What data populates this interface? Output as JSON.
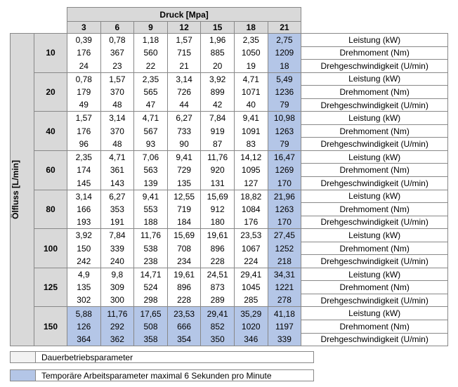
{
  "header": {
    "pressure_label": "Druck [Mpa]",
    "pressures": [
      "3",
      "6",
      "9",
      "12",
      "15",
      "18",
      "21"
    ]
  },
  "flow_label": "Ölfluss [L/min]",
  "metrics": [
    "Leistung (kW)",
    "Drehmoment (Nm)",
    "Drehgeschwindigkeit (U/min)"
  ],
  "groups": [
    {
      "flow": "10",
      "rows": [
        [
          "0,39",
          "0,78",
          "1,18",
          "1,57",
          "1,96",
          "2,35",
          "2,75"
        ],
        [
          "176",
          "367",
          "560",
          "715",
          "885",
          "1050",
          "1209"
        ],
        [
          "24",
          "23",
          "22",
          "21",
          "20",
          "19",
          "18"
        ]
      ]
    },
    {
      "flow": "20",
      "rows": [
        [
          "0,78",
          "1,57",
          "2,35",
          "3,14",
          "3,92",
          "4,71",
          "5,49"
        ],
        [
          "179",
          "370",
          "565",
          "726",
          "899",
          "1071",
          "1236"
        ],
        [
          "49",
          "48",
          "47",
          "44",
          "42",
          "40",
          "79"
        ]
      ]
    },
    {
      "flow": "40",
      "rows": [
        [
          "1,57",
          "3,14",
          "4,71",
          "6,27",
          "7,84",
          "9,41",
          "10,98"
        ],
        [
          "176",
          "370",
          "567",
          "733",
          "919",
          "1091",
          "1263"
        ],
        [
          "96",
          "48",
          "93",
          "90",
          "87",
          "83",
          "79"
        ]
      ]
    },
    {
      "flow": "60",
      "rows": [
        [
          "2,35",
          "4,71",
          "7,06",
          "9,41",
          "11,76",
          "14,12",
          "16,47"
        ],
        [
          "174",
          "361",
          "563",
          "729",
          "920",
          "1095",
          "1269"
        ],
        [
          "145",
          "143",
          "139",
          "135",
          "131",
          "127",
          "170"
        ]
      ]
    },
    {
      "flow": "80",
      "rows": [
        [
          "3,14",
          "6,27",
          "9,41",
          "12,55",
          "15,69",
          "18,82",
          "21,96"
        ],
        [
          "166",
          "353",
          "553",
          "719",
          "912",
          "1084",
          "1263"
        ],
        [
          "193",
          "191",
          "188",
          "184",
          "180",
          "176",
          "170"
        ]
      ]
    },
    {
      "flow": "100",
      "rows": [
        [
          "3,92",
          "7,84",
          "11,76",
          "15,69",
          "19,61",
          "23,53",
          "27,45"
        ],
        [
          "150",
          "339",
          "538",
          "708",
          "896",
          "1067",
          "1252"
        ],
        [
          "242",
          "240",
          "238",
          "234",
          "228",
          "224",
          "218"
        ]
      ]
    },
    {
      "flow": "125",
      "rows": [
        [
          "4,9",
          "9,8",
          "14,71",
          "19,61",
          "24,51",
          "29,41",
          "34,31"
        ],
        [
          "135",
          "309",
          "524",
          "896",
          "873",
          "1045",
          "1221"
        ],
        [
          "302",
          "300",
          "298",
          "228",
          "289",
          "285",
          "278"
        ]
      ]
    },
    {
      "flow": "150",
      "rows": [
        [
          "5,88",
          "11,76",
          "17,65",
          "23,53",
          "29,41",
          "35,29",
          "41,18"
        ],
        [
          "126",
          "292",
          "508",
          "666",
          "852",
          "1020",
          "1197"
        ],
        [
          "364",
          "362",
          "358",
          "354",
          "350",
          "346",
          "339"
        ]
      ]
    }
  ],
  "legend": [
    "Dauerbetriebsparameter",
    "Temporäre Arbeitsparameter maximal 6 Sekunden pro Minute"
  ]
}
